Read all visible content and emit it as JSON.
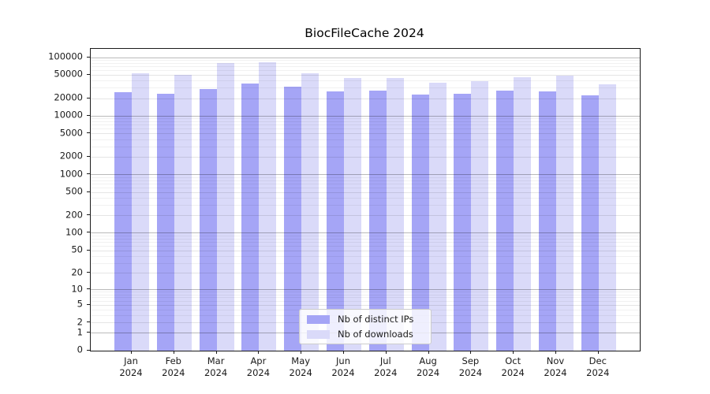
{
  "chart_data": {
    "type": "bar",
    "title": "BiocFileCache 2024",
    "categories": [
      "Jan 2024",
      "Feb 2024",
      "Mar 2024",
      "Apr 2024",
      "May 2024",
      "Jun 2024",
      "Jul 2024",
      "Aug 2024",
      "Sep 2024",
      "Oct 2024",
      "Nov 2024",
      "Dec 2024"
    ],
    "month_labels": [
      "Jan",
      "Feb",
      "Mar",
      "Apr",
      "May",
      "Jun",
      "Jul",
      "Aug",
      "Sep",
      "Oct",
      "Nov",
      "Dec"
    ],
    "year_label": "2024",
    "series": [
      {
        "name": "Nb of distinct IPs",
        "color": "#a5a5f6",
        "values": [
          25600,
          23500,
          28700,
          35500,
          31800,
          26000,
          27000,
          23000,
          24100,
          27000,
          26200,
          22600
        ]
      },
      {
        "name": "Nb of downloads",
        "color": "#dadaf9",
        "values": [
          52800,
          50000,
          80500,
          83000,
          53800,
          44000,
          44300,
          37200,
          38800,
          44800,
          48200,
          34600
        ]
      }
    ],
    "yscale": "log10(1+x)",
    "ytick_values": [
      100000,
      50000,
      20000,
      10000,
      5000,
      2000,
      1000,
      500,
      200,
      100,
      50,
      20,
      10,
      5,
      2,
      1,
      0
    ],
    "ytick_labels": [
      "100000",
      "50000",
      "20000",
      "10000",
      "5000",
      "2000",
      "1000",
      "500",
      "200",
      "100",
      "50",
      "20",
      "10",
      "5",
      "2",
      "1",
      "0"
    ],
    "ylim": [
      0,
      130000
    ],
    "grid": true,
    "legend": {
      "position": "lower-center",
      "entries": [
        "Nb of distinct IPs",
        "Nb of downloads"
      ]
    }
  },
  "colors": {
    "distinct_ips_bar": "#a5a5f6",
    "downloads_bar": "#dadaf9",
    "spine": "#1a1a1a",
    "major_grid": "#bababa",
    "minor_grid": "#efefef",
    "background": "#ffffff"
  }
}
